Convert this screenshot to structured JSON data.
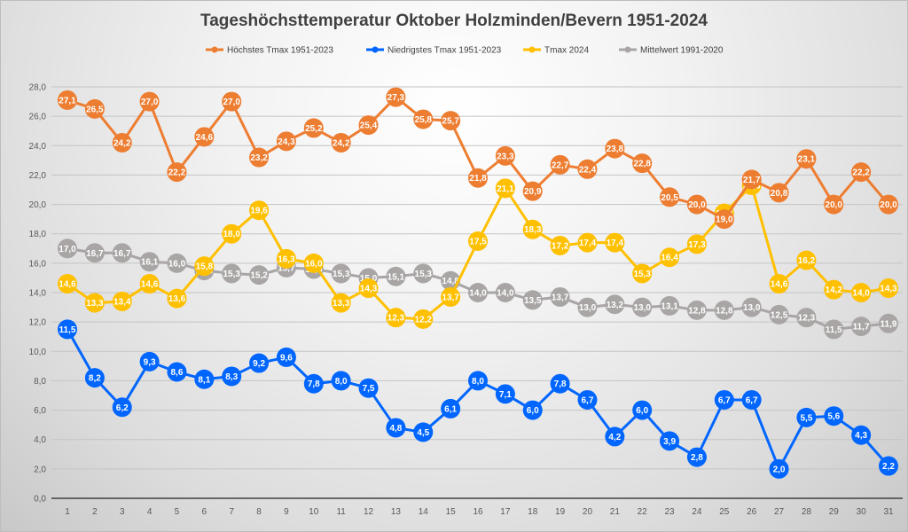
{
  "chart_data": {
    "type": "line",
    "title": "Tageshöchsttemperatur Oktober Holzminden/Bevern 1951-2024",
    "xlabel": "",
    "ylabel": "",
    "x": [
      1,
      2,
      3,
      4,
      5,
      6,
      7,
      8,
      9,
      10,
      11,
      12,
      13,
      14,
      15,
      16,
      17,
      18,
      19,
      20,
      21,
      22,
      23,
      24,
      25,
      26,
      27,
      28,
      29,
      30,
      31
    ],
    "ylim": [
      0,
      28
    ],
    "yticks": [
      "0,0",
      "2,0",
      "4,0",
      "6,0",
      "8,0",
      "10,0",
      "12,0",
      "14,0",
      "16,0",
      "18,0",
      "20,0",
      "22,0",
      "24,0",
      "26,0",
      "28,0"
    ],
    "ytick_values": [
      0,
      2,
      4,
      6,
      8,
      10,
      12,
      14,
      16,
      18,
      20,
      22,
      24,
      26,
      28
    ],
    "grid": true,
    "legend_position": "top",
    "decimal_separator": ",",
    "series": [
      {
        "name": "Höchstes Tmax 1951-2023",
        "color": "#ED7D31",
        "values": [
          27.1,
          26.5,
          24.2,
          27.0,
          22.2,
          24.6,
          27.0,
          23.2,
          24.3,
          25.2,
          24.2,
          25.4,
          27.3,
          25.8,
          25.7,
          21.8,
          23.3,
          20.9,
          22.7,
          22.4,
          23.8,
          22.8,
          20.5,
          20.0,
          19.0,
          21.7,
          20.8,
          23.1,
          20.0,
          22.2,
          20.0
        ]
      },
      {
        "name": "Niedrigstes Tmax 1951-2023",
        "color": "#0066FF",
        "values": [
          11.5,
          8.2,
          6.2,
          9.3,
          8.6,
          8.1,
          8.3,
          9.2,
          9.6,
          7.8,
          8.0,
          7.5,
          4.8,
          4.5,
          6.1,
          8.0,
          7.1,
          6.0,
          7.8,
          6.7,
          4.2,
          6.0,
          3.9,
          2.8,
          6.7,
          6.7,
          2.0,
          5.5,
          5.6,
          4.3,
          2.2
        ]
      },
      {
        "name": "Tmax 2024",
        "color": "#FFC000",
        "values": [
          14.6,
          13.3,
          13.4,
          14.6,
          13.6,
          15.8,
          18.0,
          19.6,
          16.3,
          16.0,
          13.3,
          14.3,
          12.3,
          12.2,
          13.7,
          17.5,
          21.1,
          18.3,
          17.2,
          17.4,
          17.4,
          15.3,
          16.4,
          17.3,
          19.4,
          21.3,
          14.6,
          16.2,
          14.2,
          14.0,
          14.3
        ]
      },
      {
        "name": "Mittelwert 1991-2020",
        "color": "#A9A5A5",
        "values": [
          17.0,
          16.7,
          16.7,
          16.1,
          16.0,
          15.5,
          15.3,
          15.2,
          15.7,
          15.6,
          15.3,
          15.0,
          15.1,
          15.3,
          14.8,
          14.0,
          14.0,
          13.5,
          13.7,
          13.0,
          13.2,
          13.0,
          13.1,
          12.8,
          12.8,
          13.0,
          12.5,
          12.3,
          11.5,
          11.7,
          11.9
        ]
      }
    ]
  }
}
